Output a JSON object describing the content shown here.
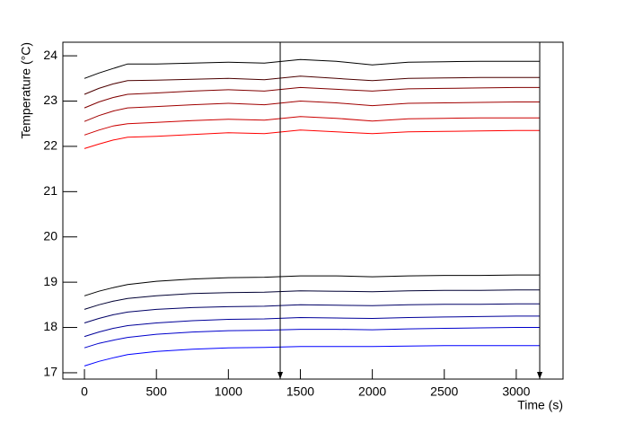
{
  "chart_data": {
    "type": "line",
    "x_label": "Time (s)",
    "y_label": "Temperature (°C)",
    "xlim": [
      -150,
      3325
    ],
    "ylim": [
      16.86,
      24.3
    ],
    "xticks": [
      0,
      500,
      1000,
      1500,
      2000,
      2500,
      3000
    ],
    "yticks": [
      17,
      18,
      19,
      20,
      21,
      22,
      23,
      24
    ],
    "markers": [
      1360,
      3163
    ],
    "x": [
      0,
      100,
      200,
      300,
      500,
      750,
      1000,
      1250,
      1500,
      1750,
      2000,
      2250,
      2500,
      2750,
      3000,
      3163
    ],
    "series": [
      {
        "color": "#000000",
        "values": [
          23.5,
          23.62,
          23.72,
          23.82,
          23.82,
          23.84,
          23.86,
          23.84,
          23.92,
          23.88,
          23.8,
          23.86,
          23.87,
          23.88,
          23.88,
          23.88
        ]
      },
      {
        "color": "#4c0000",
        "values": [
          23.15,
          23.28,
          23.38,
          23.45,
          23.46,
          23.48,
          23.5,
          23.47,
          23.55,
          23.5,
          23.45,
          23.5,
          23.51,
          23.52,
          23.52,
          23.52
        ]
      },
      {
        "color": "#800000",
        "values": [
          22.85,
          22.98,
          23.08,
          23.15,
          23.18,
          23.22,
          23.25,
          23.22,
          23.3,
          23.26,
          23.22,
          23.27,
          23.28,
          23.29,
          23.3,
          23.3
        ]
      },
      {
        "color": "#a00000",
        "values": [
          22.55,
          22.68,
          22.78,
          22.85,
          22.88,
          22.92,
          22.95,
          22.92,
          23.0,
          22.96,
          22.9,
          22.95,
          22.96,
          22.97,
          22.98,
          22.98
        ]
      },
      {
        "color": "#cc0000",
        "values": [
          22.25,
          22.36,
          22.45,
          22.5,
          22.53,
          22.57,
          22.6,
          22.58,
          22.66,
          22.62,
          22.56,
          22.61,
          22.62,
          22.63,
          22.63,
          22.63
        ]
      },
      {
        "color": "#ff0000",
        "values": [
          21.95,
          22.05,
          22.14,
          22.2,
          22.22,
          22.26,
          22.3,
          22.28,
          22.36,
          22.32,
          22.28,
          22.32,
          22.33,
          22.34,
          22.35,
          22.35
        ]
      },
      {
        "color": "#000000",
        "values": [
          18.7,
          18.8,
          18.88,
          18.95,
          19.02,
          19.07,
          19.1,
          19.11,
          19.14,
          19.14,
          19.12,
          19.14,
          19.15,
          19.15,
          19.16,
          19.16
        ]
      },
      {
        "color": "#000033",
        "values": [
          18.4,
          18.5,
          18.58,
          18.64,
          18.7,
          18.75,
          18.77,
          18.78,
          18.81,
          18.8,
          18.79,
          18.81,
          18.82,
          18.82,
          18.83,
          18.83
        ]
      },
      {
        "color": "#000066",
        "values": [
          18.1,
          18.2,
          18.28,
          18.34,
          18.4,
          18.44,
          18.46,
          18.47,
          18.5,
          18.49,
          18.48,
          18.5,
          18.51,
          18.51,
          18.52,
          18.52
        ]
      },
      {
        "color": "#000099",
        "values": [
          17.8,
          17.9,
          17.98,
          18.04,
          18.1,
          18.15,
          18.18,
          18.19,
          18.22,
          18.21,
          18.2,
          18.22,
          18.23,
          18.24,
          18.25,
          18.25
        ]
      },
      {
        "color": "#0000cc",
        "values": [
          17.55,
          17.65,
          17.72,
          17.78,
          17.85,
          17.9,
          17.93,
          17.94,
          17.96,
          17.96,
          17.95,
          17.97,
          17.98,
          17.99,
          18.0,
          18.0
        ]
      },
      {
        "color": "#0000ff",
        "values": [
          17.15,
          17.25,
          17.33,
          17.4,
          17.47,
          17.52,
          17.55,
          17.56,
          17.58,
          17.58,
          17.58,
          17.59,
          17.6,
          17.6,
          17.6,
          17.6
        ]
      }
    ]
  }
}
